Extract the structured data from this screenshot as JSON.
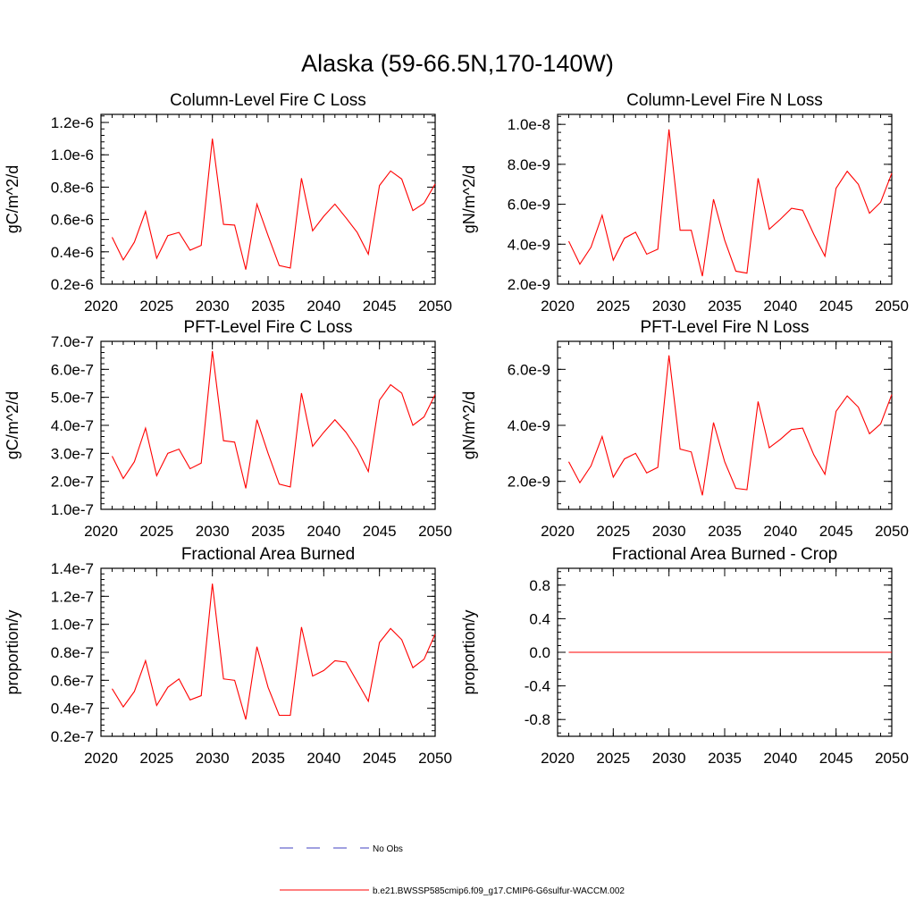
{
  "figure": {
    "title": "Alaska (59-66.5N,170-140W)"
  },
  "legend": {
    "entries": [
      {
        "label": "No Obs",
        "color": "#4040c0",
        "dash": "dashed"
      },
      {
        "label": "b.e21.BWSSP585cmip6.f09_g17.CMIP6-G6sulfur-WACCM.002",
        "color": "#ff0000",
        "dash": "solid"
      }
    ]
  },
  "chart_data": [
    {
      "type": "line",
      "title": "Column-Level Fire C Loss",
      "ylabel": "gC/m^2/d",
      "xlim": [
        2020,
        2050
      ],
      "ylim": [
        2e-07,
        1.25e-06
      ],
      "xticks": [
        2020,
        2025,
        2030,
        2035,
        2040,
        2045,
        2050
      ],
      "xtick_labels": [
        "2020",
        "2025",
        "2030",
        "2035",
        "2040",
        "2045",
        "2050"
      ],
      "yticks": [
        2e-07,
        4e-07,
        6e-07,
        8e-07,
        1e-06,
        1.2e-06
      ],
      "ytick_labels": [
        "0.2e-6",
        "0.4e-6",
        "0.6e-6",
        "0.8e-6",
        "1.0e-6",
        "1.2e-6"
      ],
      "x": [
        2021,
        2022,
        2023,
        2024,
        2025,
        2026,
        2027,
        2028,
        2029,
        2030,
        2031,
        2032,
        2033,
        2034,
        2035,
        2036,
        2037,
        2038,
        2039,
        2040,
        2041,
        2042,
        2043,
        2044,
        2045,
        2046,
        2047,
        2048,
        2049,
        2050
      ],
      "series": [
        {
          "color": "#ff0000",
          "values": [
            4.9e-07,
            3.5e-07,
            4.6e-07,
            6.5e-07,
            3.6e-07,
            5e-07,
            5.2e-07,
            4.1e-07,
            4.4e-07,
            1.1e-06,
            5.7e-07,
            5.65e-07,
            2.9e-07,
            6.95e-07,
            5e-07,
            3.15e-07,
            3e-07,
            8.55e-07,
            5.3e-07,
            6.2e-07,
            6.95e-07,
            6.1e-07,
            5.2e-07,
            3.85e-07,
            8.1e-07,
            9e-07,
            8.5e-07,
            6.55e-07,
            7e-07,
            8.2e-07
          ]
        }
      ]
    },
    {
      "type": "line",
      "title": "Column-Level Fire N Loss",
      "ylabel": "gN/m^2/d",
      "xlim": [
        2020,
        2050
      ],
      "ylim": [
        2e-09,
        1.05e-08
      ],
      "xticks": [
        2020,
        2025,
        2030,
        2035,
        2040,
        2045,
        2050
      ],
      "xtick_labels": [
        "2020",
        "2025",
        "2030",
        "2035",
        "2040",
        "2045",
        "2050"
      ],
      "yticks": [
        2e-09,
        4e-09,
        6e-09,
        8e-09,
        1e-08
      ],
      "ytick_labels": [
        "2.0e-9",
        "4.0e-9",
        "6.0e-9",
        "8.0e-9",
        "1.0e-8"
      ],
      "x": [
        2021,
        2022,
        2023,
        2024,
        2025,
        2026,
        2027,
        2028,
        2029,
        2030,
        2031,
        2032,
        2033,
        2034,
        2035,
        2036,
        2037,
        2038,
        2039,
        2040,
        2041,
        2042,
        2043,
        2044,
        2045,
        2046,
        2047,
        2048,
        2049,
        2050
      ],
      "series": [
        {
          "color": "#ff0000",
          "values": [
            4.15e-09,
            3e-09,
            3.85e-09,
            5.45e-09,
            3.2e-09,
            4.3e-09,
            4.6e-09,
            3.5e-09,
            3.75e-09,
            9.75e-09,
            4.7e-09,
            4.7e-09,
            2.4e-09,
            6.25e-09,
            4.2e-09,
            2.65e-09,
            2.55e-09,
            7.3e-09,
            4.75e-09,
            5.25e-09,
            5.8e-09,
            5.7e-09,
            4.5e-09,
            3.4e-09,
            6.8e-09,
            7.65e-09,
            7e-09,
            5.55e-09,
            6.1e-09,
            7.55e-09
          ]
        }
      ]
    },
    {
      "type": "line",
      "title": "PFT-Level Fire C Loss",
      "ylabel": "gC/m^2/d",
      "xlim": [
        2020,
        2050
      ],
      "ylim": [
        1e-07,
        7e-07
      ],
      "xticks": [
        2020,
        2025,
        2030,
        2035,
        2040,
        2045,
        2050
      ],
      "xtick_labels": [
        "2020",
        "2025",
        "2030",
        "2035",
        "2040",
        "2045",
        "2050"
      ],
      "yticks": [
        1e-07,
        2e-07,
        3e-07,
        4e-07,
        5e-07,
        6e-07,
        7e-07
      ],
      "ytick_labels": [
        "1.0e-7",
        "2.0e-7",
        "3.0e-7",
        "4.0e-7",
        "5.0e-7",
        "6.0e-7",
        "7.0e-7"
      ],
      "x": [
        2021,
        2022,
        2023,
        2024,
        2025,
        2026,
        2027,
        2028,
        2029,
        2030,
        2031,
        2032,
        2033,
        2034,
        2035,
        2036,
        2037,
        2038,
        2039,
        2040,
        2041,
        2042,
        2043,
        2044,
        2045,
        2046,
        2047,
        2048,
        2049,
        2050
      ],
      "series": [
        {
          "color": "#ff0000",
          "values": [
            2.9e-07,
            2.1e-07,
            2.7e-07,
            3.9e-07,
            2.2e-07,
            3e-07,
            3.15e-07,
            2.45e-07,
            2.65e-07,
            6.65e-07,
            3.45e-07,
            3.4e-07,
            1.75e-07,
            4.2e-07,
            3e-07,
            1.9e-07,
            1.8e-07,
            5.15e-07,
            3.25e-07,
            3.75e-07,
            4.2e-07,
            3.75e-07,
            3.15e-07,
            2.35e-07,
            4.9e-07,
            5.45e-07,
            5.15e-07,
            4e-07,
            4.3e-07,
            5.1e-07
          ]
        }
      ]
    },
    {
      "type": "line",
      "title": "PFT-Level Fire N Loss",
      "ylabel": "gN/m^2/d",
      "xlim": [
        2020,
        2050
      ],
      "ylim": [
        1e-09,
        7e-09
      ],
      "xticks": [
        2020,
        2025,
        2030,
        2035,
        2040,
        2045,
        2050
      ],
      "xtick_labels": [
        "2020",
        "2025",
        "2030",
        "2035",
        "2040",
        "2045",
        "2050"
      ],
      "yticks": [
        2e-09,
        4e-09,
        6e-09
      ],
      "ytick_labels": [
        "2.0e-9",
        "4.0e-9",
        "6.0e-9"
      ],
      "x": [
        2021,
        2022,
        2023,
        2024,
        2025,
        2026,
        2027,
        2028,
        2029,
        2030,
        2031,
        2032,
        2033,
        2034,
        2035,
        2036,
        2037,
        2038,
        2039,
        2040,
        2041,
        2042,
        2043,
        2044,
        2045,
        2046,
        2047,
        2048,
        2049,
        2050
      ],
      "series": [
        {
          "color": "#ff0000",
          "values": [
            2.7e-09,
            1.95e-09,
            2.55e-09,
            3.6e-09,
            2.15e-09,
            2.8e-09,
            3e-09,
            2.3e-09,
            2.5e-09,
            6.5e-09,
            3.15e-09,
            3.05e-09,
            1.5e-09,
            4.1e-09,
            2.7e-09,
            1.75e-09,
            1.7e-09,
            4.85e-09,
            3.2e-09,
            3.5e-09,
            3.85e-09,
            3.9e-09,
            2.95e-09,
            2.25e-09,
            4.5e-09,
            5.05e-09,
            4.65e-09,
            3.7e-09,
            4.05e-09,
            5.1e-09
          ]
        }
      ]
    },
    {
      "type": "line",
      "title": "Fractional Area Burned",
      "ylabel": "proportion/y",
      "xlim": [
        2020,
        2050
      ],
      "ylim": [
        2e-08,
        1.4e-07
      ],
      "xticks": [
        2020,
        2025,
        2030,
        2035,
        2040,
        2045,
        2050
      ],
      "xtick_labels": [
        "2020",
        "2025",
        "2030",
        "2035",
        "2040",
        "2045",
        "2050"
      ],
      "yticks": [
        2e-08,
        4e-08,
        6e-08,
        8e-08,
        1e-07,
        1.2e-07,
        1.4e-07
      ],
      "ytick_labels": [
        "0.2e-7",
        "0.4e-7",
        "0.6e-7",
        "0.8e-7",
        "1.0e-7",
        "1.2e-7",
        "1.4e-7"
      ],
      "x": [
        2021,
        2022,
        2023,
        2024,
        2025,
        2026,
        2027,
        2028,
        2029,
        2030,
        2031,
        2032,
        2033,
        2034,
        2035,
        2036,
        2037,
        2038,
        2039,
        2040,
        2041,
        2042,
        2043,
        2044,
        2045,
        2046,
        2047,
        2048,
        2049,
        2050
      ],
      "series": [
        {
          "color": "#ff0000",
          "values": [
            5.4e-08,
            4.1e-08,
            5.2e-08,
            7.4e-08,
            4.2e-08,
            5.5e-08,
            6.1e-08,
            4.6e-08,
            4.9e-08,
            1.29e-07,
            6.1e-08,
            6e-08,
            3.2e-08,
            8.4e-08,
            5.5e-08,
            3.5e-08,
            3.5e-08,
            9.8e-08,
            6.3e-08,
            6.7e-08,
            7.4e-08,
            7.3e-08,
            5.9e-08,
            4.5e-08,
            8.7e-08,
            9.7e-08,
            8.9e-08,
            6.9e-08,
            7.5e-08,
            9.3e-08
          ]
        }
      ]
    },
    {
      "type": "line",
      "title": "Fractional Area Burned - Crop",
      "ylabel": "proportion/y",
      "xlim": [
        2020,
        2050
      ],
      "ylim": [
        -1.0,
        1.0
      ],
      "xticks": [
        2020,
        2025,
        2030,
        2035,
        2040,
        2045,
        2050
      ],
      "xtick_labels": [
        "2020",
        "2025",
        "2030",
        "2035",
        "2040",
        "2045",
        "2050"
      ],
      "yticks": [
        -0.8,
        -0.4,
        0.0,
        0.4,
        0.8
      ],
      "ytick_labels": [
        "-0.8",
        "-0.4",
        "0.0",
        "0.4",
        "0.8"
      ],
      "x": [
        2021,
        2022,
        2023,
        2024,
        2025,
        2026,
        2027,
        2028,
        2029,
        2030,
        2031,
        2032,
        2033,
        2034,
        2035,
        2036,
        2037,
        2038,
        2039,
        2040,
        2041,
        2042,
        2043,
        2044,
        2045,
        2046,
        2047,
        2048,
        2049,
        2050
      ],
      "series": [
        {
          "color": "#ff0000",
          "values": [
            0,
            0,
            0,
            0,
            0,
            0,
            0,
            0,
            0,
            0,
            0,
            0,
            0,
            0,
            0,
            0,
            0,
            0,
            0,
            0,
            0,
            0,
            0,
            0,
            0,
            0,
            0,
            0,
            0,
            0
          ]
        }
      ]
    }
  ]
}
